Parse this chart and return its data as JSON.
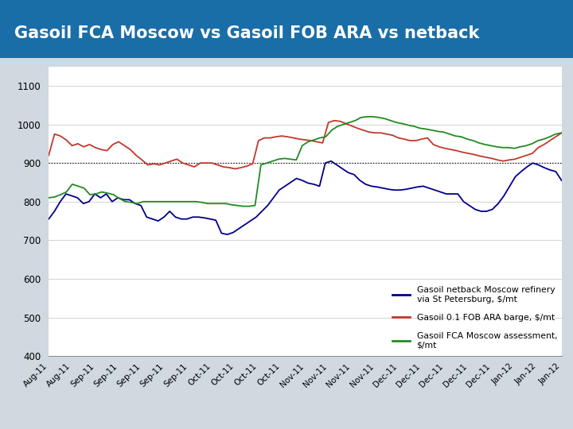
{
  "title": "Gasoil FCA Moscow vs Gasoil FOB ARA vs netback",
  "title_bg_top": "#1a6ea8",
  "title_bg_bottom": "#1a6ea8",
  "title_color": "white",
  "separator_color": "#2d6e2d",
  "chart_bg": "white",
  "outer_bg": "#d0d8e0",
  "ylim": [
    400,
    1150
  ],
  "yticks": [
    400,
    500,
    600,
    700,
    800,
    900,
    1000,
    1100
  ],
  "hline_y": 900,
  "hline_style": "dotted",
  "legend": [
    {
      "label": "Gasoil netback Moscow refinery\nvia St Petersburg, $/mt",
      "color": "#00008B"
    },
    {
      "label": "Gasoil 0.1 FOB ARA barge, $/mt",
      "color": "#C0392B"
    },
    {
      "label": "Gasoil FCA Moscow assessment,\n$/mt",
      "color": "#228B22"
    }
  ],
  "blue_data": [
    755,
    775,
    800,
    820,
    815,
    810,
    795,
    800,
    820,
    810,
    820,
    800,
    810,
    805,
    805,
    795,
    790,
    760,
    755,
    750,
    760,
    775,
    760,
    755,
    755,
    760,
    760,
    758,
    755,
    752,
    718,
    715,
    720,
    730,
    740,
    750,
    760,
    775,
    790,
    810,
    830,
    840,
    850,
    860,
    855,
    848,
    845,
    840,
    900,
    905,
    895,
    885,
    875,
    870,
    855,
    845,
    840,
    838,
    835,
    832,
    830,
    830,
    832,
    835,
    838,
    840,
    835,
    830,
    825,
    820,
    820,
    820,
    800,
    790,
    780,
    775,
    775,
    780,
    795,
    815,
    840,
    865,
    878,
    890,
    900,
    895,
    888,
    882,
    878,
    855
  ],
  "red_data": [
    920,
    975,
    970,
    960,
    945,
    950,
    942,
    948,
    940,
    935,
    932,
    948,
    955,
    945,
    935,
    920,
    908,
    895,
    898,
    895,
    900,
    905,
    910,
    900,
    895,
    890,
    900,
    900,
    900,
    895,
    890,
    888,
    885,
    888,
    892,
    898,
    958,
    965,
    965,
    968,
    970,
    968,
    965,
    962,
    960,
    958,
    955,
    952,
    1005,
    1010,
    1008,
    1002,
    996,
    990,
    985,
    980,
    978,
    978,
    975,
    972,
    965,
    962,
    958,
    958,
    962,
    965,
    948,
    942,
    938,
    935,
    932,
    928,
    925,
    922,
    918,
    915,
    912,
    908,
    905,
    908,
    910,
    915,
    920,
    925,
    940,
    948,
    958,
    968,
    978
  ],
  "green_data": [
    810,
    812,
    818,
    825,
    845,
    840,
    835,
    818,
    820,
    825,
    822,
    818,
    808,
    800,
    798,
    795,
    800,
    800,
    800,
    800,
    800,
    800,
    800,
    800,
    800,
    800,
    798,
    795,
    795,
    795,
    795,
    792,
    790,
    788,
    788,
    790,
    895,
    900,
    905,
    910,
    912,
    910,
    908,
    945,
    955,
    960,
    965,
    968,
    985,
    995,
    1000,
    1005,
    1010,
    1018,
    1020,
    1020,
    1018,
    1015,
    1010,
    1005,
    1002,
    998,
    995,
    990,
    988,
    985,
    982,
    980,
    975,
    970,
    968,
    962,
    958,
    952,
    948,
    945,
    942,
    940,
    940,
    938,
    942,
    945,
    950,
    958,
    962,
    968,
    975,
    978
  ]
}
